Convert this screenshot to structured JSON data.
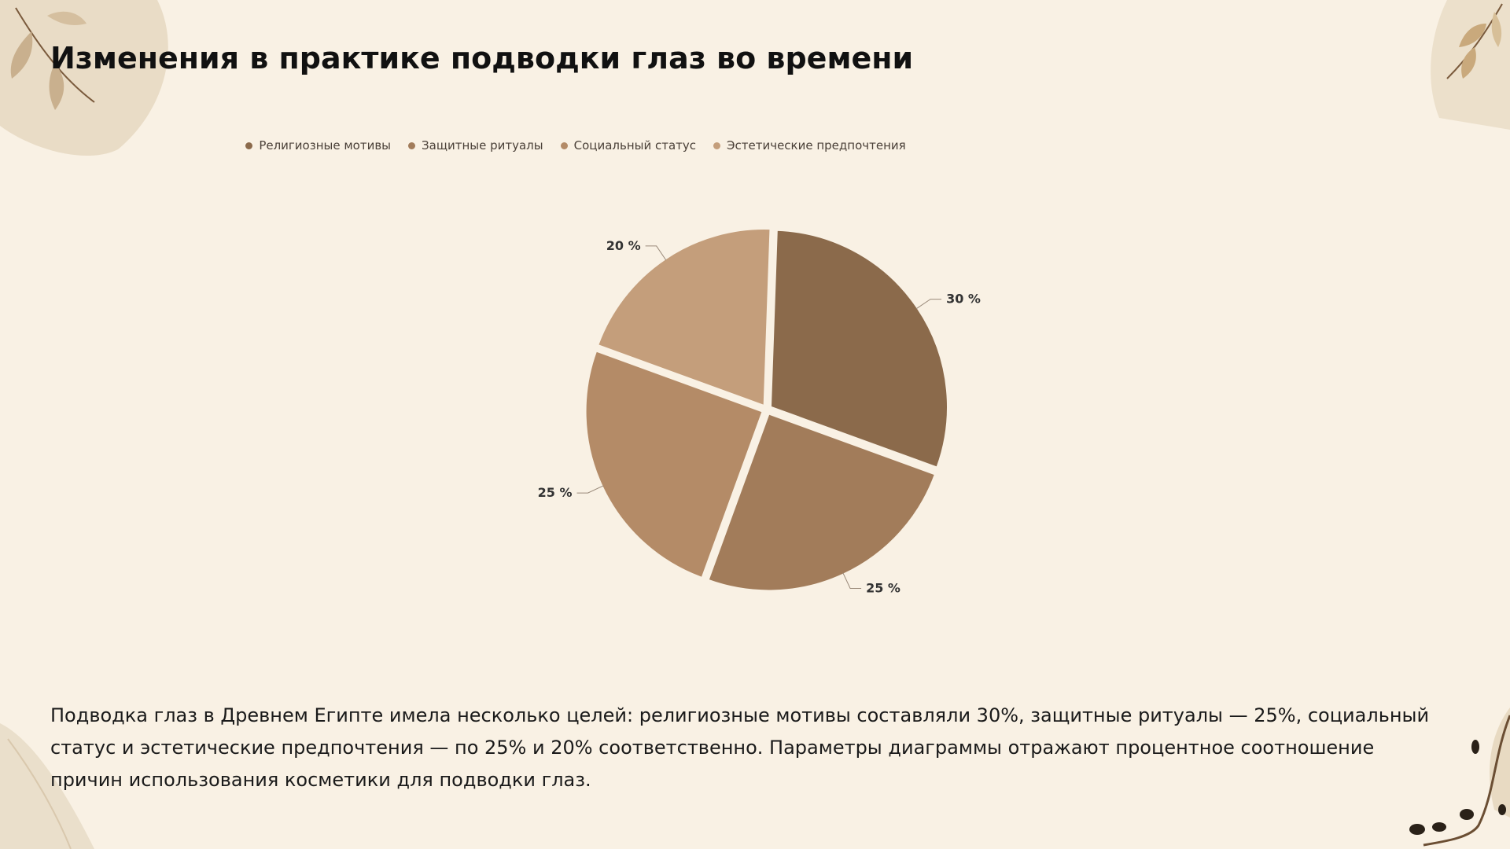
{
  "title": "Изменения в практике подводки глаз во времени",
  "chart_data": {
    "type": "pie",
    "title": "",
    "categories": [
      "Религиозные мотивы",
      "Защитные ритуалы",
      "Социальный статус",
      "Эстетические предпочтения"
    ],
    "values": [
      30,
      25,
      25,
      20
    ],
    "value_labels": [
      "30 %",
      "25 %",
      "25 %",
      "20 %"
    ],
    "colors": [
      "#8b6a4b",
      "#a27c5a",
      "#b48b67",
      "#c49e7b"
    ],
    "legend_position": "top"
  },
  "description": "Подводка глаз в Древнем Египте имела несколько целей: религиозные мотивы составляли 30%, защитные ритуалы — 25%, социальный статус и эстетические предпочтения — по 25% и 20% соответственно. Параметры диаграммы отражают процентное соотношение причин использования косметики для подводки глаз.",
  "decorations": {
    "top_left": "leaf-branch-icon",
    "top_right": "leaf-branch-icon",
    "bottom_left": "leaf-shape-icon",
    "bottom_right": "berry-branch-icon"
  }
}
